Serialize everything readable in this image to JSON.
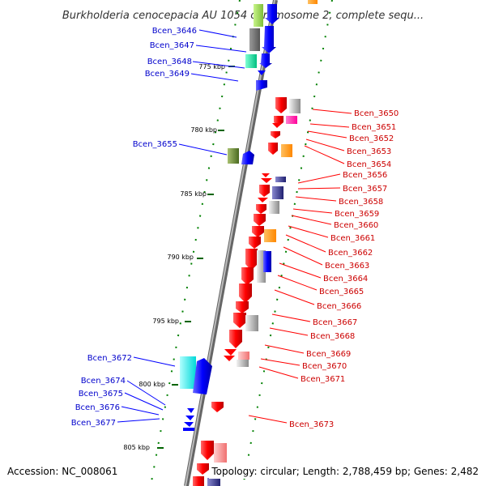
{
  "title": "Burkholderia cenocepacia AU 1054 chromosome 2, complete sequ...",
  "footer": {
    "accession": "Accession: NC_008061",
    "summary": "Topology: circular; Length: 2,788,459 bp; Genes: 2,482"
  },
  "colors": {
    "forward_strand": "#0000ff",
    "reverse_strand": "#ff0000",
    "left_label": "#0000cc",
    "right_label": "#cc0000",
    "backbone": "#888888",
    "guide_dots": "#008000"
  },
  "ticks": [
    {
      "label": "775 kbp"
    },
    {
      "label": "780 kbp"
    },
    {
      "label": "785 kbp"
    },
    {
      "label": "790 kbp"
    },
    {
      "label": "795 kbp"
    },
    {
      "label": "800 kbp"
    },
    {
      "label": "805 kbp"
    }
  ],
  "left_genes": [
    {
      "label": "Bcen_3646"
    },
    {
      "label": "Bcen_3647"
    },
    {
      "label": "Bcen_3648"
    },
    {
      "label": "Bcen_3649"
    },
    {
      "label": "Bcen_3655"
    },
    {
      "label": "Bcen_3672"
    },
    {
      "label": "Bcen_3674"
    },
    {
      "label": "Bcen_3675"
    },
    {
      "label": "Bcen_3676"
    },
    {
      "label": "Bcen_3677"
    }
  ],
  "right_genes": [
    {
      "label": "Bcen_3650"
    },
    {
      "label": "Bcen_3651"
    },
    {
      "label": "Bcen_3652"
    },
    {
      "label": "Bcen_3653"
    },
    {
      "label": "Bcen_3654"
    },
    {
      "label": "Bcen_3656"
    },
    {
      "label": "Bcen_3657"
    },
    {
      "label": "Bcen_3658"
    },
    {
      "label": "Bcen_3659"
    },
    {
      "label": "Bcen_3660"
    },
    {
      "label": "Bcen_3661"
    },
    {
      "label": "Bcen_3662"
    },
    {
      "label": "Bcen_3663"
    },
    {
      "label": "Bcen_3664"
    },
    {
      "label": "Bcen_3665"
    },
    {
      "label": "Bcen_3666"
    },
    {
      "label": "Bcen_3667"
    },
    {
      "label": "Bcen_3668"
    },
    {
      "label": "Bcen_3669"
    },
    {
      "label": "Bcen_3670"
    },
    {
      "label": "Bcen_3671"
    },
    {
      "label": "Bcen_3673"
    }
  ]
}
